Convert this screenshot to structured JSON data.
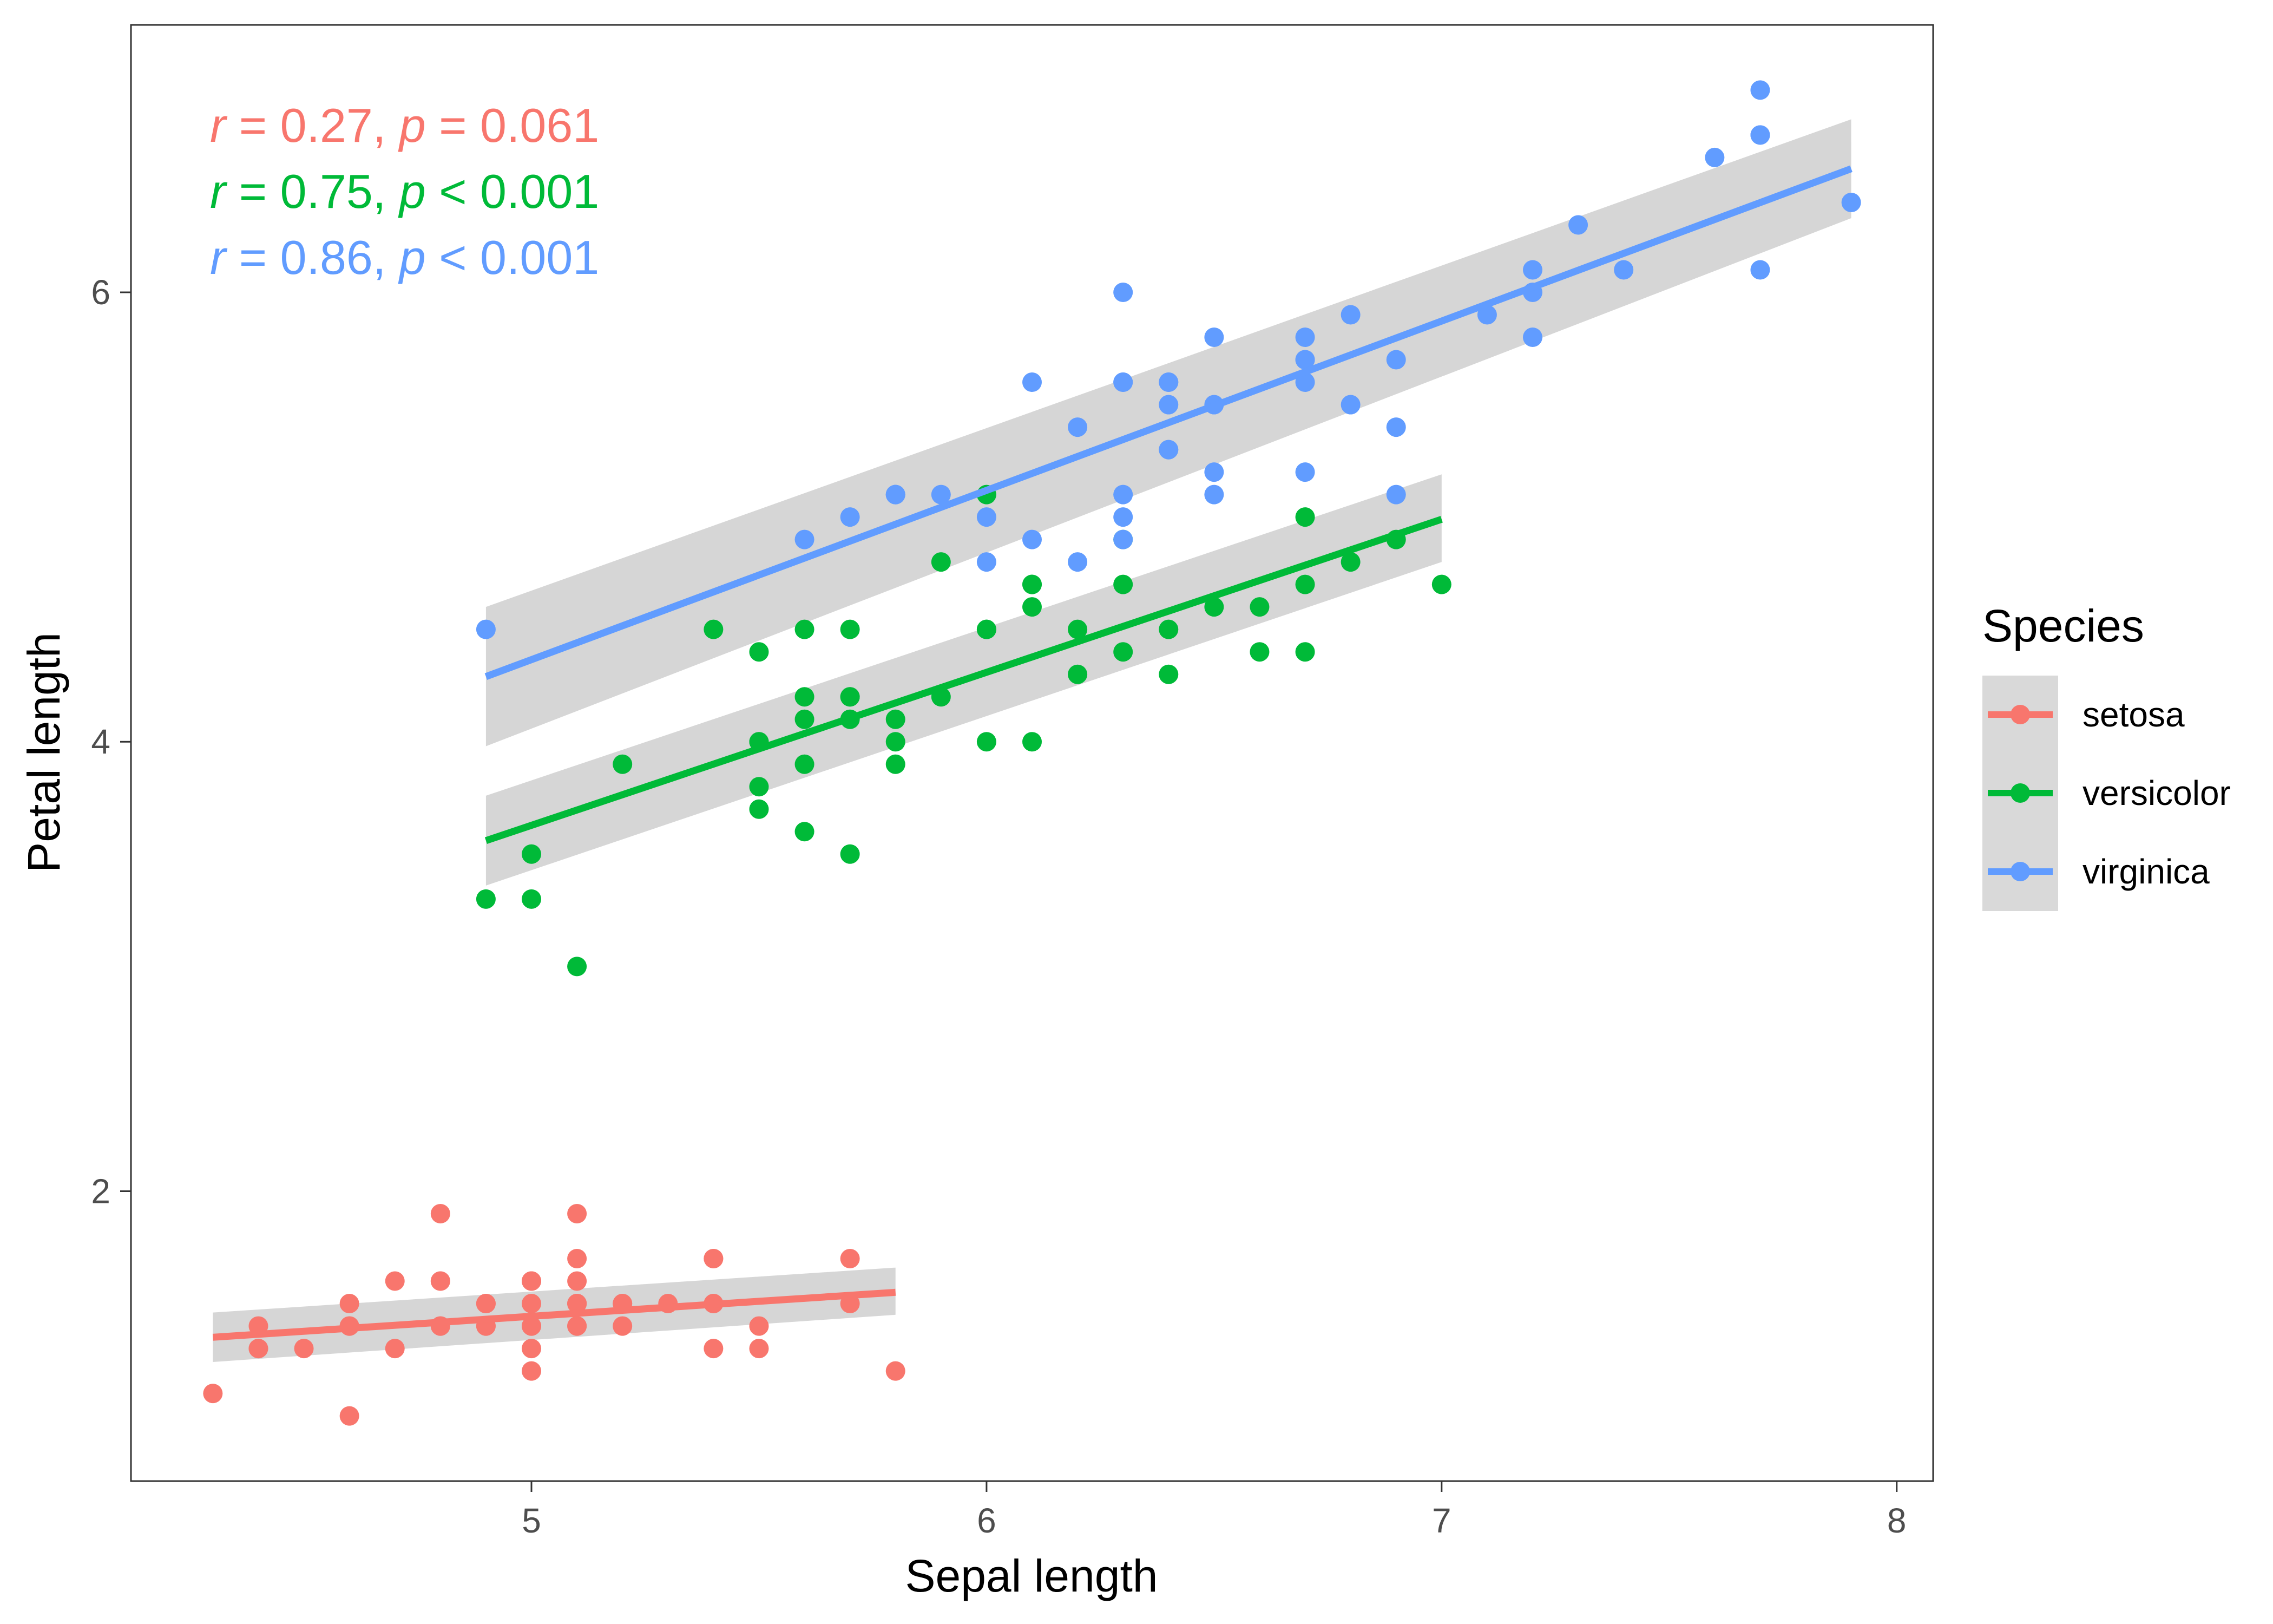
{
  "chart_data": {
    "type": "scatter",
    "xlabel": "Sepal length",
    "ylabel": "Petal length",
    "xlim": [
      4.12,
      8.08
    ],
    "ylim": [
      0.71,
      7.19
    ],
    "x_ticks": [
      5,
      6,
      7,
      8
    ],
    "y_ticks": [
      2,
      4,
      6
    ],
    "grid": false,
    "legend": {
      "title": "Species",
      "position": "right"
    },
    "annotations": [
      {
        "r_label": "r",
        "r_value": " = 0.27, ",
        "p_label": "p",
        "p_value": " = 0.061",
        "color": "#F8766D"
      },
      {
        "r_label": "r",
        "r_value": " = 0.75, ",
        "p_label": "p",
        "p_value": " < 0.001",
        "color": "#00BA38"
      },
      {
        "r_label": "r",
        "r_value": " = 0.86, ",
        "p_label": "p",
        "p_value": " < 0.001",
        "color": "#619CFF"
      }
    ],
    "series": [
      {
        "name": "setosa",
        "color": "#F8766D",
        "fit": {
          "x": [
            4.3,
            5.8
          ],
          "y": [
            1.35,
            1.55
          ],
          "ci_lower": [
            1.24,
            1.45
          ],
          "ci_upper": [
            1.46,
            1.66
          ]
        },
        "points": [
          [
            5.1,
            1.4
          ],
          [
            4.9,
            1.4
          ],
          [
            4.7,
            1.3
          ],
          [
            4.6,
            1.5
          ],
          [
            5.0,
            1.4
          ],
          [
            5.4,
            1.7
          ],
          [
            4.6,
            1.4
          ],
          [
            5.0,
            1.5
          ],
          [
            4.4,
            1.4
          ],
          [
            4.9,
            1.5
          ],
          [
            5.4,
            1.5
          ],
          [
            4.8,
            1.6
          ],
          [
            4.8,
            1.4
          ],
          [
            4.3,
            1.1
          ],
          [
            5.8,
            1.2
          ],
          [
            5.7,
            1.5
          ],
          [
            5.4,
            1.3
          ],
          [
            5.1,
            1.4
          ],
          [
            5.7,
            1.7
          ],
          [
            5.1,
            1.5
          ],
          [
            5.4,
            1.7
          ],
          [
            5.1,
            1.5
          ],
          [
            4.6,
            1.0
          ],
          [
            5.1,
            1.7
          ],
          [
            4.8,
            1.9
          ],
          [
            5.0,
            1.6
          ],
          [
            5.0,
            1.6
          ],
          [
            5.2,
            1.5
          ],
          [
            5.2,
            1.4
          ],
          [
            4.7,
            1.6
          ],
          [
            4.8,
            1.6
          ],
          [
            5.4,
            1.5
          ],
          [
            5.2,
            1.5
          ],
          [
            5.5,
            1.4
          ],
          [
            4.9,
            1.5
          ],
          [
            5.0,
            1.2
          ],
          [
            5.5,
            1.3
          ],
          [
            4.9,
            1.4
          ],
          [
            4.4,
            1.3
          ],
          [
            5.1,
            1.5
          ],
          [
            5.0,
            1.3
          ],
          [
            4.5,
            1.3
          ],
          [
            4.4,
            1.3
          ],
          [
            5.0,
            1.6
          ],
          [
            5.1,
            1.9
          ],
          [
            4.8,
            1.4
          ],
          [
            5.1,
            1.6
          ],
          [
            4.6,
            1.4
          ],
          [
            5.3,
            1.5
          ],
          [
            5.0,
            1.4
          ]
        ]
      },
      {
        "name": "versicolor",
        "color": "#00BA38",
        "fit": {
          "x": [
            4.9,
            7.0
          ],
          "y": [
            3.56,
            4.99
          ],
          "ci_lower": [
            3.36,
            4.8
          ],
          "ci_upper": [
            3.76,
            5.19
          ]
        },
        "points": [
          [
            7.0,
            4.7
          ],
          [
            6.4,
            4.5
          ],
          [
            6.9,
            4.9
          ],
          [
            5.5,
            4.0
          ],
          [
            6.5,
            4.6
          ],
          [
            5.7,
            4.5
          ],
          [
            6.3,
            4.7
          ],
          [
            4.9,
            3.3
          ],
          [
            6.6,
            4.6
          ],
          [
            5.2,
            3.9
          ],
          [
            5.0,
            3.5
          ],
          [
            5.9,
            4.2
          ],
          [
            6.0,
            4.0
          ],
          [
            6.1,
            4.7
          ],
          [
            5.6,
            3.6
          ],
          [
            6.7,
            4.4
          ],
          [
            5.6,
            4.5
          ],
          [
            5.8,
            4.1
          ],
          [
            6.2,
            4.5
          ],
          [
            5.6,
            3.9
          ],
          [
            5.9,
            4.8
          ],
          [
            6.1,
            4.0
          ],
          [
            6.3,
            4.9
          ],
          [
            6.1,
            4.7
          ],
          [
            6.4,
            4.3
          ],
          [
            6.6,
            4.4
          ],
          [
            6.8,
            4.8
          ],
          [
            6.7,
            5.0
          ],
          [
            6.0,
            4.5
          ],
          [
            5.7,
            3.5
          ],
          [
            5.5,
            3.8
          ],
          [
            5.5,
            3.7
          ],
          [
            5.8,
            3.9
          ],
          [
            6.0,
            5.1
          ],
          [
            5.4,
            4.5
          ],
          [
            6.0,
            4.5
          ],
          [
            6.7,
            4.7
          ],
          [
            6.3,
            4.4
          ],
          [
            5.6,
            4.1
          ],
          [
            5.5,
            4.0
          ],
          [
            5.5,
            4.4
          ],
          [
            6.1,
            4.6
          ],
          [
            5.8,
            4.0
          ],
          [
            5.0,
            3.3
          ],
          [
            5.6,
            4.2
          ],
          [
            5.7,
            4.2
          ],
          [
            5.7,
            4.2
          ],
          [
            6.2,
            4.3
          ],
          [
            5.1,
            3.0
          ],
          [
            5.7,
            4.1
          ]
        ]
      },
      {
        "name": "virginica",
        "color": "#619CFF",
        "fit": {
          "x": [
            4.9,
            7.9
          ],
          "y": [
            4.29,
            6.55
          ],
          "ci_lower": [
            3.98,
            6.33
          ],
          "ci_upper": [
            4.6,
            6.77
          ]
        },
        "points": [
          [
            6.3,
            6.0
          ],
          [
            5.8,
            5.1
          ],
          [
            7.1,
            5.9
          ],
          [
            6.3,
            5.6
          ],
          [
            6.5,
            5.8
          ],
          [
            7.6,
            6.6
          ],
          [
            4.9,
            4.5
          ],
          [
            7.3,
            6.3
          ],
          [
            6.7,
            5.8
          ],
          [
            7.2,
            6.1
          ],
          [
            6.5,
            5.1
          ],
          [
            6.4,
            5.3
          ],
          [
            6.8,
            5.5
          ],
          [
            5.7,
            5.0
          ],
          [
            5.8,
            5.1
          ],
          [
            6.4,
            5.3
          ],
          [
            6.5,
            5.5
          ],
          [
            7.7,
            6.7
          ],
          [
            7.7,
            6.9
          ],
          [
            6.0,
            5.0
          ],
          [
            6.9,
            5.7
          ],
          [
            5.6,
            4.9
          ],
          [
            7.7,
            6.7
          ],
          [
            6.3,
            4.9
          ],
          [
            6.7,
            5.7
          ],
          [
            7.2,
            6.0
          ],
          [
            6.2,
            4.8
          ],
          [
            6.1,
            4.9
          ],
          [
            6.4,
            5.6
          ],
          [
            7.2,
            5.8
          ],
          [
            7.4,
            6.1
          ],
          [
            7.9,
            6.4
          ],
          [
            6.4,
            5.6
          ],
          [
            6.3,
            5.1
          ],
          [
            6.1,
            5.6
          ],
          [
            7.7,
            6.1
          ],
          [
            6.3,
            5.6
          ],
          [
            6.4,
            5.5
          ],
          [
            6.0,
            4.8
          ],
          [
            6.9,
            5.4
          ],
          [
            6.7,
            5.6
          ],
          [
            6.9,
            5.1
          ],
          [
            5.8,
            5.1
          ],
          [
            6.8,
            5.9
          ],
          [
            6.7,
            5.7
          ],
          [
            6.7,
            5.2
          ],
          [
            6.3,
            5.0
          ],
          [
            6.5,
            5.2
          ],
          [
            6.2,
            5.4
          ],
          [
            5.9,
            5.1
          ]
        ]
      }
    ]
  }
}
